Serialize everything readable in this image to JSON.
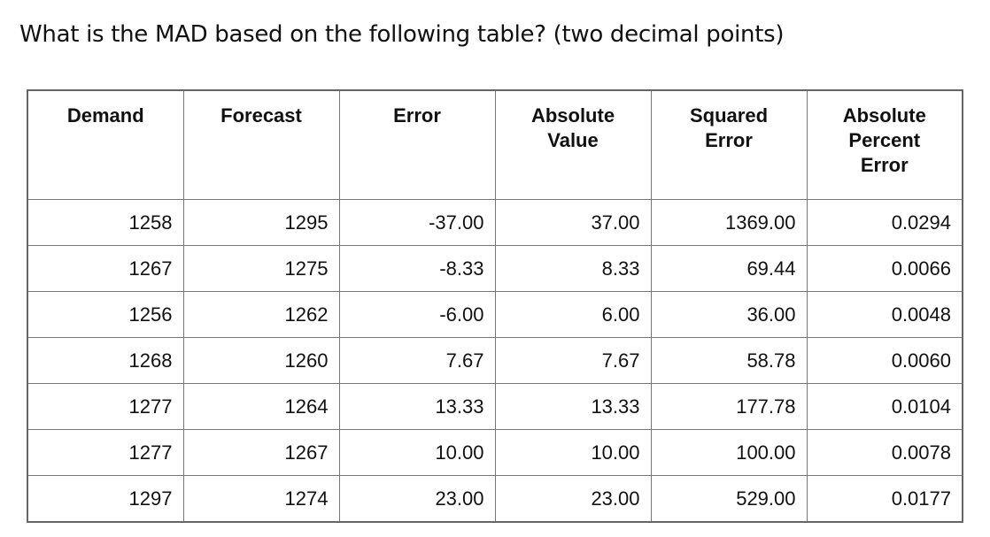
{
  "question": "What is the MAD based on the following table? (two decimal points)",
  "table": {
    "headers": [
      "Demand",
      "Forecast",
      "Error",
      "Absolute\nValue",
      "Squared\nError",
      "Absolute\nPercent\nError"
    ],
    "rows": [
      [
        "1258",
        "1295",
        "-37.00",
        "37.00",
        "1369.00",
        "0.0294"
      ],
      [
        "1267",
        "1275",
        "-8.33",
        "8.33",
        "69.44",
        "0.0066"
      ],
      [
        "1256",
        "1262",
        "-6.00",
        "6.00",
        "36.00",
        "0.0048"
      ],
      [
        "1268",
        "1260",
        "7.67",
        "7.67",
        "58.78",
        "0.0060"
      ],
      [
        "1277",
        "1264",
        "13.33",
        "13.33",
        "177.78",
        "0.0104"
      ],
      [
        "1277",
        "1267",
        "10.00",
        "10.00",
        "100.00",
        "0.0078"
      ],
      [
        "1297",
        "1274",
        "23.00",
        "23.00",
        "529.00",
        "0.0177"
      ]
    ]
  }
}
